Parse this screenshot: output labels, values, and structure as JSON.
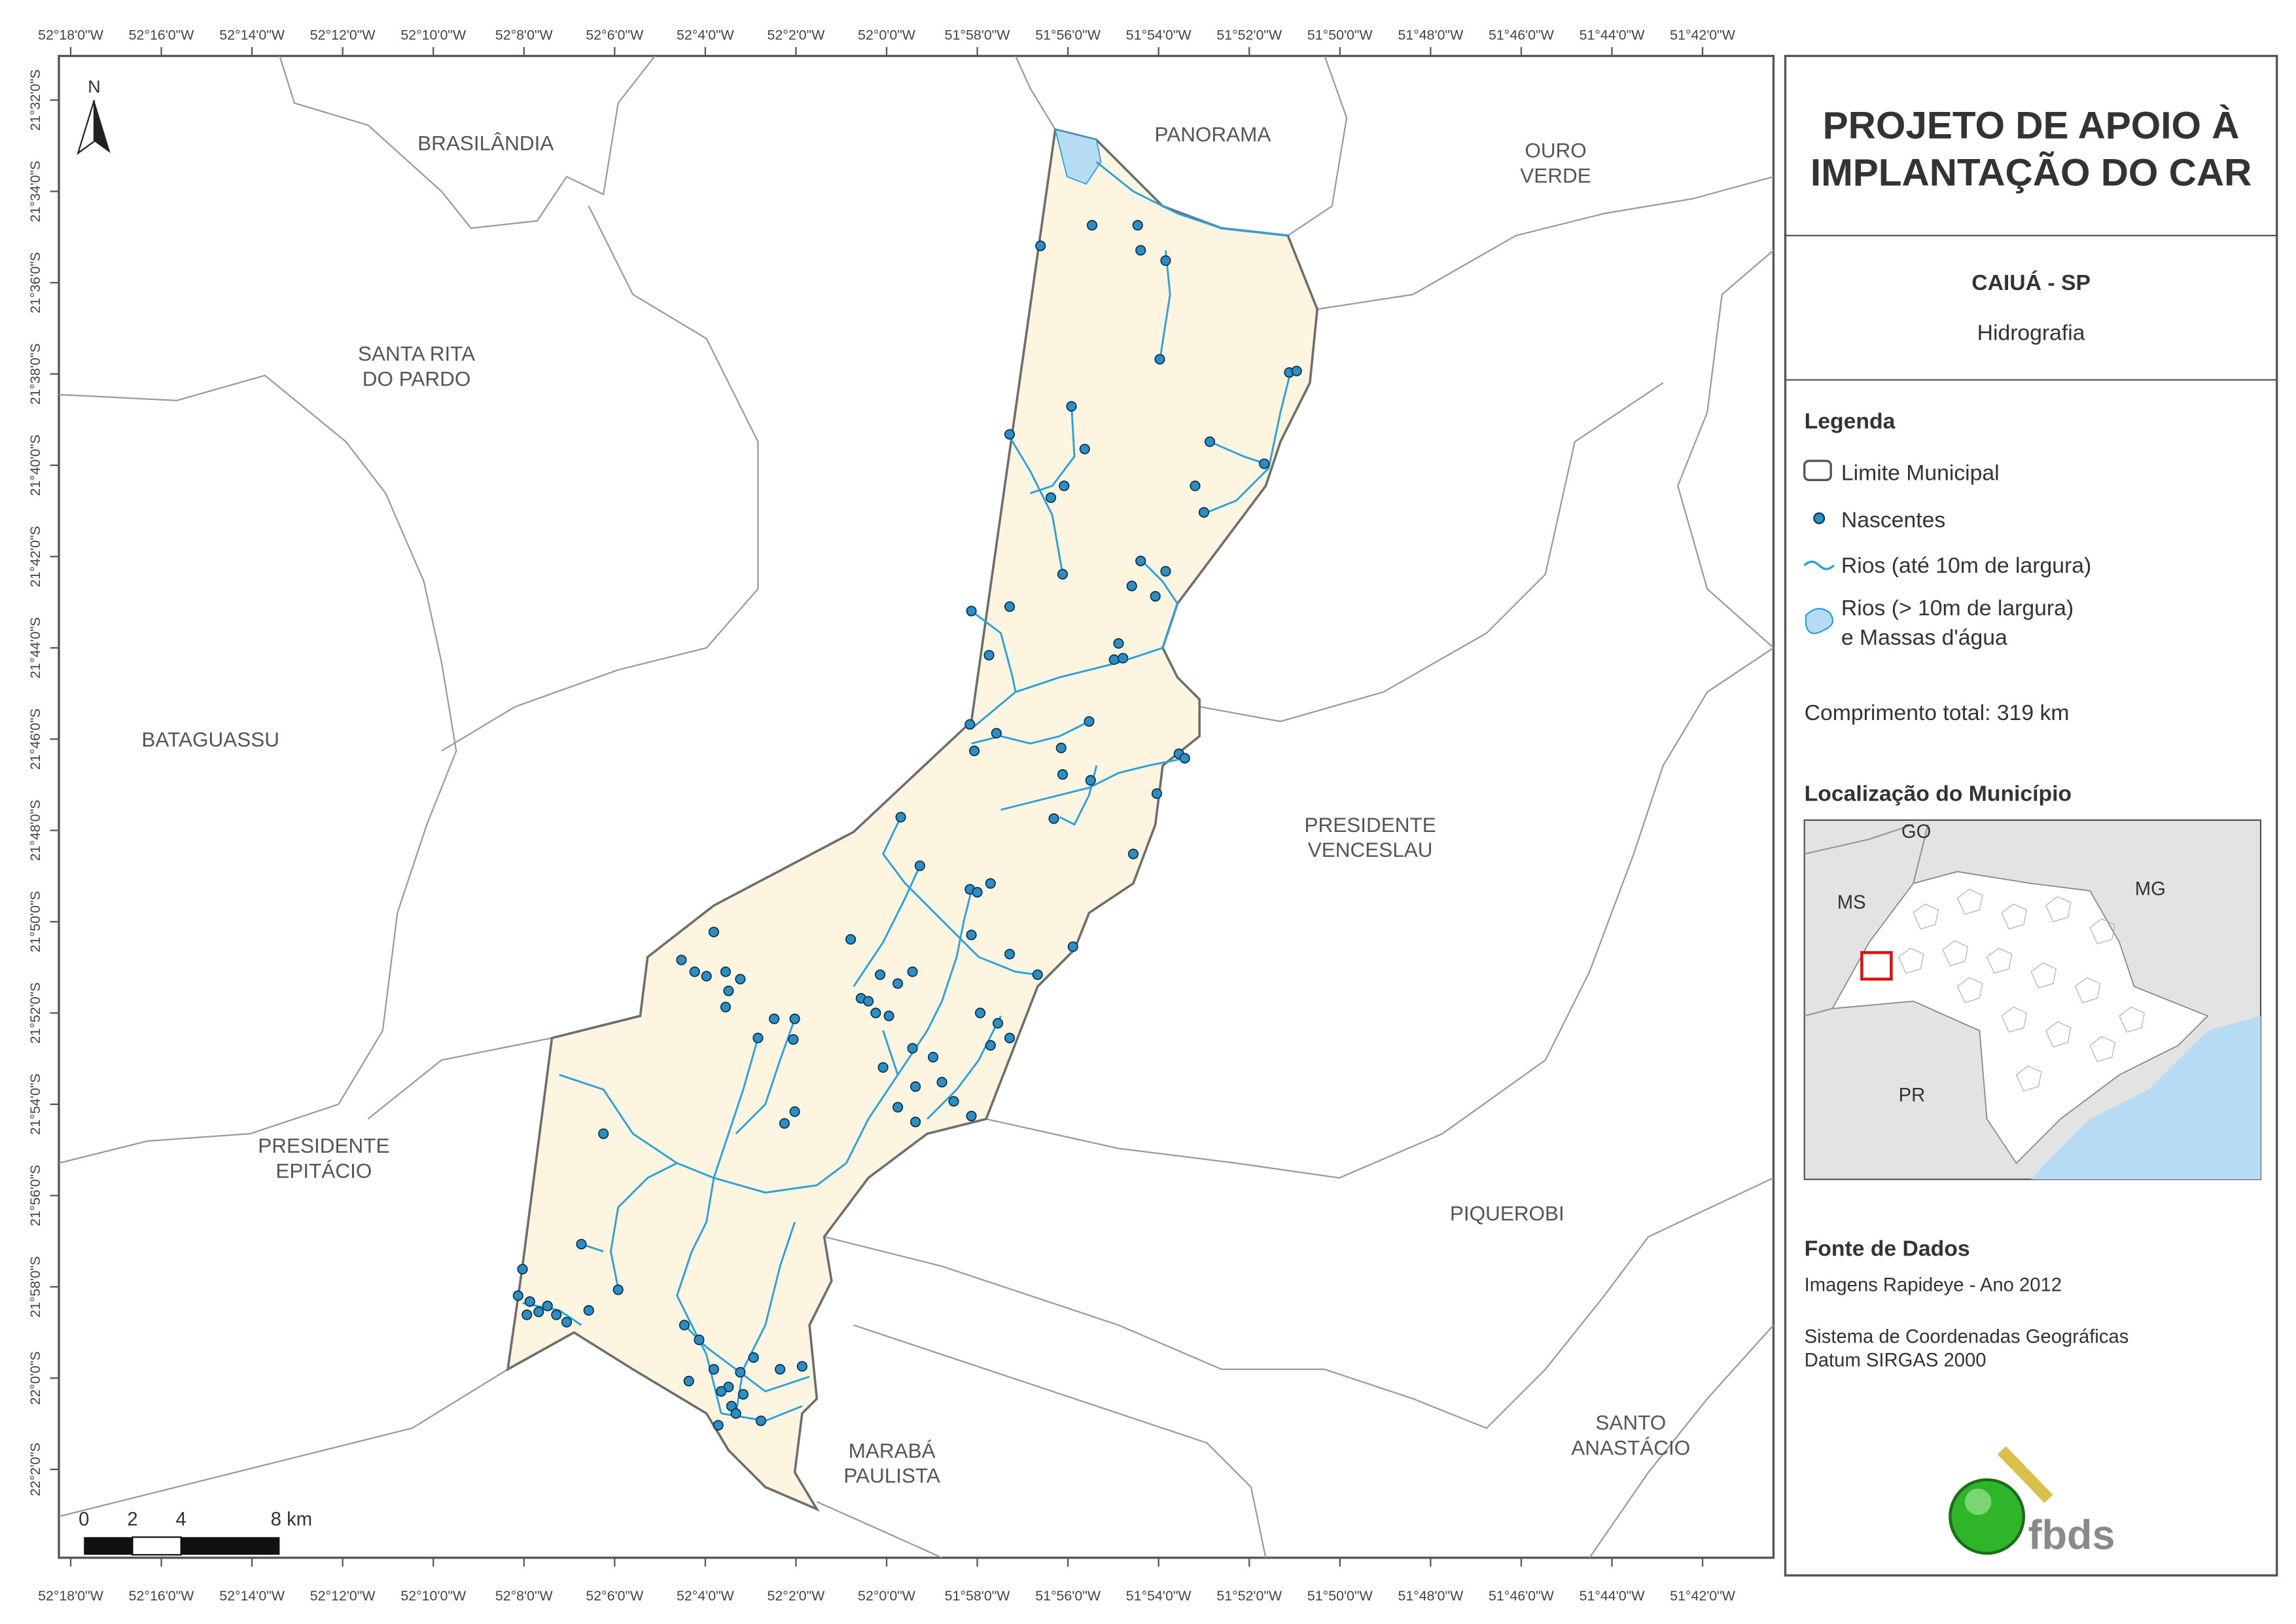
{
  "header": {
    "title_lines": [
      "PROJETO DE APOIO À",
      "IMPLANTAÇÃO DO CAR"
    ],
    "municipality": "CAIUÁ - SP",
    "theme": "Hidrografia"
  },
  "legend": {
    "title": "Legenda",
    "items": [
      {
        "lines": [
          "Limite Municipal"
        ]
      },
      {
        "lines": [
          "Nascentes"
        ]
      },
      {
        "lines": [
          "Rios (até 10m de largura)"
        ]
      },
      {
        "lines": [
          "Rios (> 10m de largura)",
          "e Massas d'água"
        ]
      }
    ]
  },
  "total_length": "Comprimento total:  319 km",
  "location": {
    "title": "Localização do Município",
    "states": [
      "GO",
      "MS",
      "MG",
      "PR"
    ]
  },
  "source": {
    "title": "Fonte de Dados",
    "lines": [
      "Imagens Rapideye - Ano 2012",
      "Sistema de Coordenadas Geográficas",
      "Datum SIRGAS 2000"
    ]
  },
  "logo": "fbds",
  "map": {
    "north": "N",
    "longitudes": [
      "52°18'0\"W",
      "52°16'0\"W",
      "52°14'0\"W",
      "52°12'0\"W",
      "52°10'0\"W",
      "52°8'0\"W",
      "52°6'0\"W",
      "52°4'0\"W",
      "52°2'0\"W",
      "52°0'0\"W",
      "51°58'0\"W",
      "51°56'0\"W",
      "51°54'0\"W",
      "51°52'0\"W",
      "51°50'0\"W",
      "51°48'0\"W",
      "51°46'0\"W",
      "51°44'0\"W",
      "51°42'0\"W"
    ],
    "latitudes": [
      "21°32'0\"S",
      "21°34'0\"S",
      "21°36'0\"S",
      "21°38'0\"S",
      "21°40'0\"S",
      "21°42'0\"S",
      "21°44'0\"S",
      "21°46'0\"S",
      "21°48'0\"S",
      "21°50'0\"S",
      "21°52'0\"S",
      "21°54'0\"S",
      "21°56'0\"S",
      "21°58'0\"S",
      "22°0'0\"S",
      "22°2'0\"S"
    ],
    "places": [
      {
        "lines": [
          "BRASILÂNDIA"
        ]
      },
      {
        "lines": [
          "PANORAMA"
        ]
      },
      {
        "lines": [
          "OURO",
          "VERDE"
        ]
      },
      {
        "lines": [
          "SANTA RITA",
          "DO PARDO"
        ]
      },
      {
        "lines": [
          "BATAGUASSU"
        ]
      },
      {
        "lines": [
          "PRESIDENTE",
          "VENCESLAU"
        ]
      },
      {
        "lines": [
          "PRESIDENTE",
          "EPITÁCIO"
        ]
      },
      {
        "lines": [
          "PIQUEROBI"
        ]
      },
      {
        "lines": [
          "MARABÁ",
          "PAULISTA"
        ]
      },
      {
        "lines": [
          "SANTO",
          "ANASTÁCIO"
        ]
      }
    ],
    "scale_labels": [
      "0",
      "2",
      "4",
      "8 km"
    ]
  }
}
